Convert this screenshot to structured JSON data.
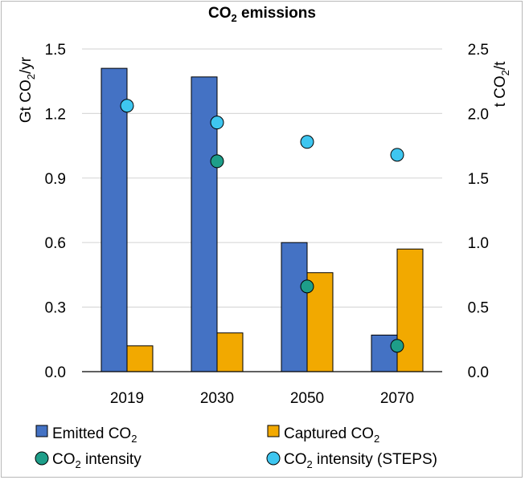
{
  "chart_data": {
    "type": "bar",
    "title": "CO",
    "title_sub": "2",
    "title_rest": " emissions",
    "categories": [
      "2019",
      "2030",
      "2050",
      "2070"
    ],
    "series": [
      {
        "name": "Emitted CO",
        "sub": "2",
        "axis": "left",
        "kind": "bar",
        "color": "#4472C4",
        "values": [
          1.41,
          1.37,
          0.6,
          0.17
        ]
      },
      {
        "name": "Captured CO",
        "sub": "2",
        "axis": "left",
        "kind": "bar",
        "color": "#F2A900",
        "values": [
          0.12,
          0.18,
          0.46,
          0.57
        ]
      },
      {
        "name": "CO",
        "sub": "2",
        "suffix": " intensity",
        "axis": "right",
        "kind": "marker",
        "color": "#1E9E89",
        "values": [
          null,
          1.63,
          0.66,
          0.2
        ]
      },
      {
        "name": "CO",
        "sub": "2",
        "suffix": " intensity (STEPS)",
        "axis": "right",
        "kind": "marker",
        "color": "#3EC6F0",
        "values": [
          2.06,
          1.93,
          1.78,
          1.68
        ]
      }
    ],
    "left_axis": {
      "label_pre": "Gt CO",
      "label_sub": "2",
      "label_post": "/yr",
      "ylim": [
        0,
        1.5
      ],
      "ticks": [
        "0.0",
        "0.3",
        "0.6",
        "0.9",
        "1.2",
        "1.5"
      ],
      "tick_values": [
        0,
        0.3,
        0.6,
        0.9,
        1.2,
        1.5
      ]
    },
    "right_axis": {
      "label_pre": "t CO",
      "label_sub": "2",
      "label_post": "/t",
      "ylim": [
        0,
        2.5
      ],
      "ticks": [
        "0.0",
        "0.5",
        "1.0",
        "1.5",
        "2.0",
        "2.5"
      ],
      "tick_values": [
        0,
        0.5,
        1.0,
        1.5,
        2.0,
        2.5
      ]
    },
    "grid": true,
    "legend_position": "bottom",
    "colors": {
      "grid": "#D9D9D9",
      "axis": "#000000"
    }
  }
}
